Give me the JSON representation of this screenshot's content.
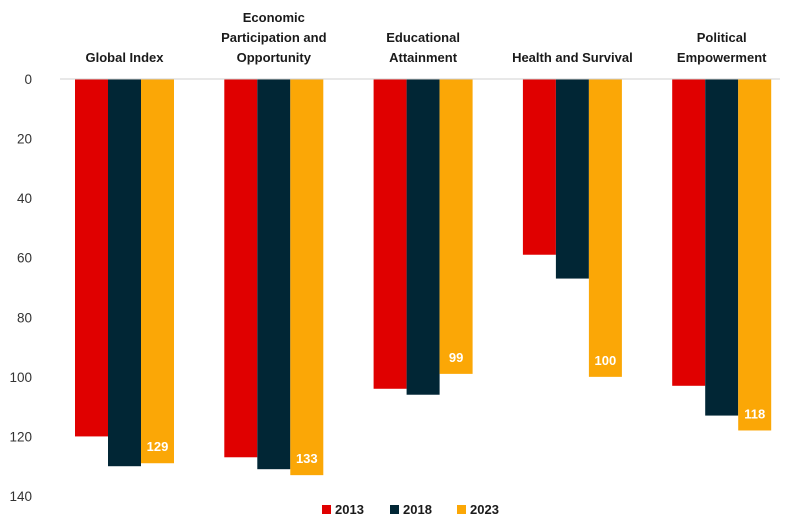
{
  "chart_data": {
    "type": "bar",
    "orientation": "vertical",
    "y_axis_inverted": true,
    "categories": [
      [
        "Global Index"
      ],
      [
        "Economic",
        "Participation and",
        "Opportunity"
      ],
      [
        "Educational",
        "Attainment"
      ],
      [
        "Health and Survival"
      ],
      [
        "Political",
        "Empowerment"
      ]
    ],
    "series": [
      {
        "name": "2013",
        "color": "#e00000",
        "values": [
          120,
          127,
          104,
          59,
          103
        ]
      },
      {
        "name": "2018",
        "color": "#012635",
        "values": [
          130,
          131,
          106,
          67,
          113
        ]
      },
      {
        "name": "2023",
        "color": "#fba706",
        "values": [
          129,
          133,
          99,
          100,
          118
        ],
        "data_labels": [
          "129",
          "133",
          "99",
          "100",
          "118"
        ]
      }
    ],
    "ylim": [
      0,
      140
    ],
    "yticks": [
      0,
      20,
      40,
      60,
      80,
      100,
      120,
      140
    ],
    "grid": false,
    "legend_position": "bottom"
  }
}
